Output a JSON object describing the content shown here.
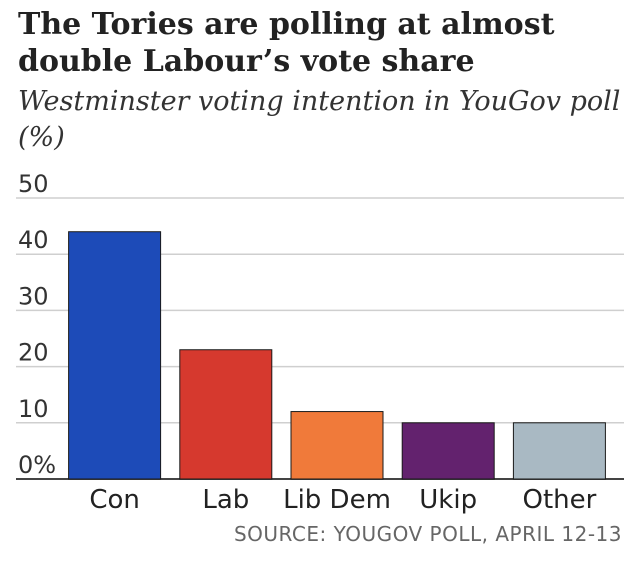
{
  "chart_data": {
    "type": "bar",
    "title": "The Tories are polling at almost double Labour’s vote share",
    "subtitle": "Westminster voting intention in YouGov poll (%)",
    "categories": [
      "Con",
      "Lab",
      "Lib Dem",
      "Ukip",
      "Other"
    ],
    "values": [
      44,
      23,
      12,
      10,
      10
    ],
    "colors": [
      "#1d4bb8",
      "#d6392e",
      "#f07a3a",
      "#63226e",
      "#a9b9c3"
    ],
    "yticks": [
      "0%",
      "10",
      "20",
      "30",
      "40",
      "50"
    ],
    "ylim": [
      0,
      50
    ],
    "grid": true,
    "source": "SOURCE: YOUGOV POLL, APRIL 12-13"
  }
}
